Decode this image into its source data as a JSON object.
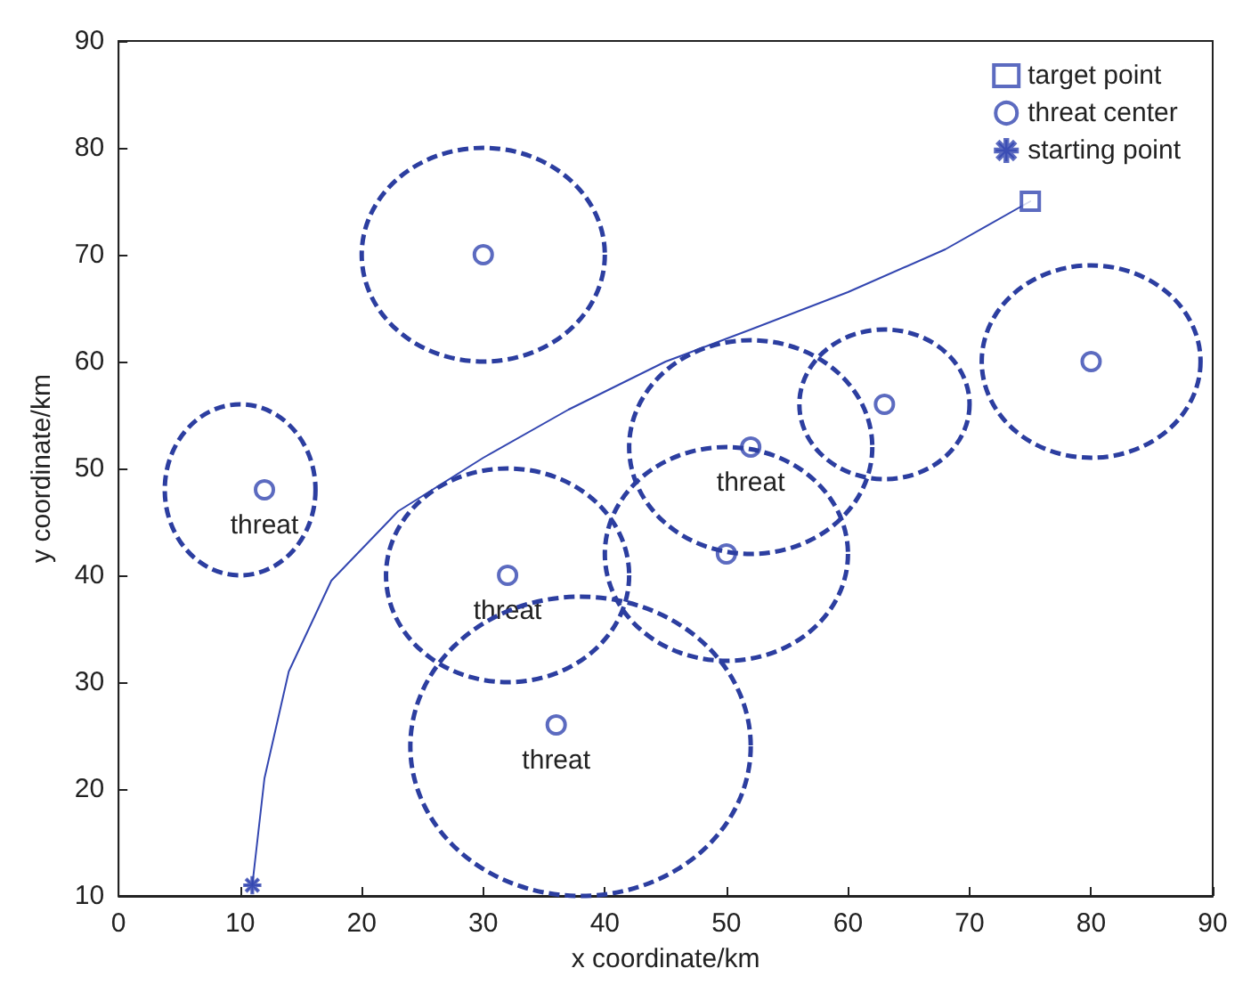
{
  "chart_data": {
    "type": "line",
    "xlabel": "x coordinate/km",
    "ylabel": "y coordinate/km",
    "xlim": [
      0,
      90
    ],
    "ylim": [
      10,
      90
    ],
    "xticks": [
      0,
      10,
      20,
      30,
      40,
      50,
      60,
      70,
      80,
      90
    ],
    "yticks": [
      10,
      20,
      30,
      40,
      50,
      60,
      70,
      80,
      90
    ],
    "grid": false,
    "legend": "top right",
    "annotations": [
      {
        "text": "threat",
        "x": 12,
        "y": 48
      },
      {
        "text": "threat",
        "x": 52,
        "y": 52
      },
      {
        "text": "threat",
        "x": 32,
        "y": 40
      },
      {
        "text": "threat",
        "x": 36,
        "y": 26
      }
    ],
    "series": [
      {
        "color": "#3346b0",
        "marker": "none",
        "line_style": "solid",
        "x": [
          11,
          12,
          14,
          17.5,
          23,
          30,
          37,
          45,
          52,
          60,
          68,
          75
        ],
        "values": [
          11,
          21,
          31,
          39.5,
          46,
          51,
          55.5,
          60,
          63,
          66.5,
          70.5,
          75
        ]
      },
      {
        "type": "scatter",
        "name": "target point",
        "color": "#3346b0",
        "marker": "square",
        "x": [
          75
        ],
        "values": [
          75
        ]
      },
      {
        "type": "scatter",
        "name": "threat center",
        "color": "#3346b0",
        "marker": "circle",
        "x": [
          12,
          30,
          32,
          36,
          50,
          52,
          63,
          80
        ],
        "values": [
          48,
          70,
          40,
          26,
          42,
          52,
          56,
          60
        ]
      },
      {
        "type": "scatter",
        "name": "starting point",
        "color": "#3346b0",
        "marker": "star",
        "x": [
          11
        ],
        "values": [
          11
        ]
      }
    ]
  }
}
